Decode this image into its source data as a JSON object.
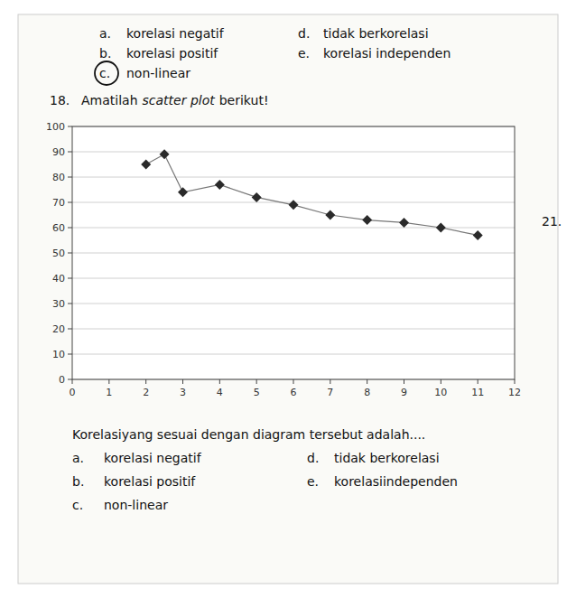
{
  "chart_data": {
    "type": "scatter",
    "annotations": [
      "a.",
      "korelasi negatif",
      "d.",
      "tidak berkorelasi",
      "b.",
      "korelasi positif",
      "e.",
      "korelasi independen",
      "c.",
      "non-linear",
      "18.",
      "Amatilah",
      "scatter plot",
      "berikut!",
      "21.",
      "Korelasiyang sesuai dengan diagram tersebut adalah....",
      "a.",
      "korelasi negatif",
      "d.",
      "tidak berkorelasi",
      "b.",
      "korelasi positif",
      "e.",
      "korelasiindependen",
      "c.",
      "non-linear"
    ],
    "x": [
      2,
      2.5,
      3,
      4,
      5,
      6,
      7,
      8,
      9,
      10,
      11
    ],
    "values": [
      85,
      89,
      74,
      77,
      72,
      69,
      65,
      63,
      62,
      60,
      57
    ],
    "color": "#2a2a2a",
    "marker": "diamond",
    "line_style": "solid",
    "xlim": [
      0,
      12
    ],
    "ylim": [
      0,
      100
    ],
    "xticks": [
      0,
      1,
      2,
      3,
      4,
      5,
      6,
      7,
      8,
      9,
      10,
      11,
      12
    ],
    "yticks": [
      0,
      10,
      20,
      30,
      40,
      50,
      60,
      70,
      80,
      90,
      100
    ],
    "grid": true
  }
}
